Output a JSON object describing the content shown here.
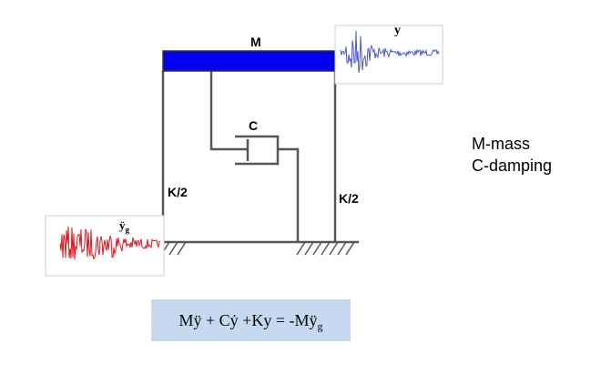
{
  "labels": {
    "mass": "M",
    "damper": "C",
    "spring_left": "K/2",
    "spring_right": "K/2",
    "response": "y",
    "ground_accel": "ÿ",
    "ground_accel_sub": "g"
  },
  "legend": {
    "line1": "M-mass",
    "line2": "C-damping"
  },
  "equation": {
    "main": "Mÿ + Cẏ +Ky = -Mÿ",
    "sub": "g"
  },
  "colors": {
    "mass_fill": "#0000ee",
    "response_signal": "#4a58d8",
    "ground_signal": "#e8141c",
    "equation_bg": "#c6d9f1"
  }
}
